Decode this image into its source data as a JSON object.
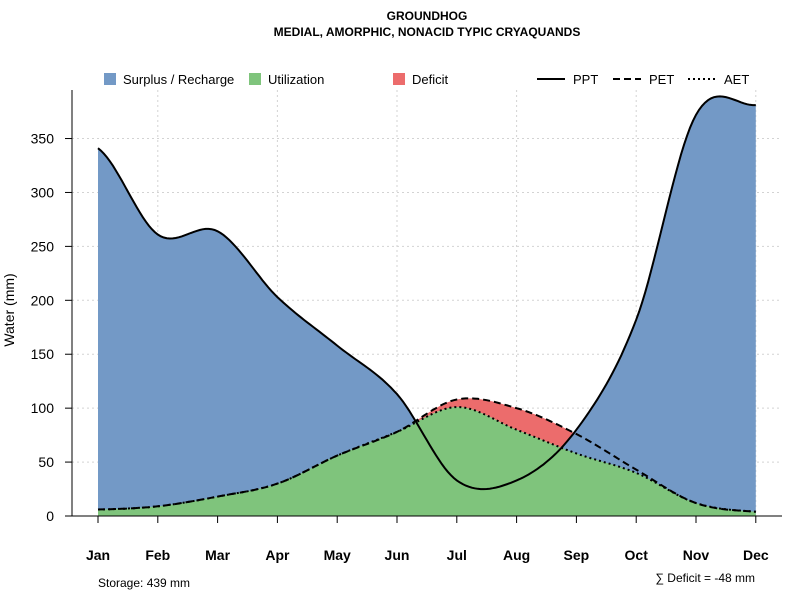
{
  "chart_data": {
    "type": "area",
    "title": "GROUNDHOG",
    "subtitle": "MEDIAL, AMORPHIC, NONACID TYPIC CRYAQUANDS",
    "xlabel": "",
    "ylabel": "Water (mm)",
    "ylim": [
      0,
      395
    ],
    "yticks": [
      0,
      50,
      100,
      150,
      200,
      250,
      300,
      350
    ],
    "categories": [
      "Jan",
      "Feb",
      "Mar",
      "Apr",
      "May",
      "Jun",
      "Jul",
      "Aug",
      "Sep",
      "Oct",
      "Nov",
      "Dec"
    ],
    "series": [
      {
        "name": "PPT",
        "style": "solid",
        "values": [
          341,
          261,
          264,
          203,
          158,
          113,
          33,
          33,
          80,
          182,
          372,
          381
        ]
      },
      {
        "name": "PET",
        "style": "dashed",
        "values": [
          6,
          9,
          18,
          30,
          56,
          78,
          108,
          100,
          76,
          43,
          12,
          4
        ]
      },
      {
        "name": "AET",
        "style": "dotted",
        "values": [
          6,
          9,
          18,
          30,
          56,
          78,
          101,
          80,
          58,
          40,
          12,
          4
        ]
      }
    ],
    "legend": [
      {
        "label": "Surplus / Recharge",
        "color": "#7399C6"
      },
      {
        "label": "Utilization",
        "color": "#7FC47C"
      },
      {
        "label": "Deficit",
        "color": "#EC6C6C"
      }
    ],
    "legend_lines": [
      "PPT",
      "PET",
      "AET"
    ],
    "legend_position": "top",
    "grid": true,
    "annotations": {
      "storage": "Storage: 439 mm",
      "deficit": "∑ Deficit = -48 mm"
    }
  }
}
